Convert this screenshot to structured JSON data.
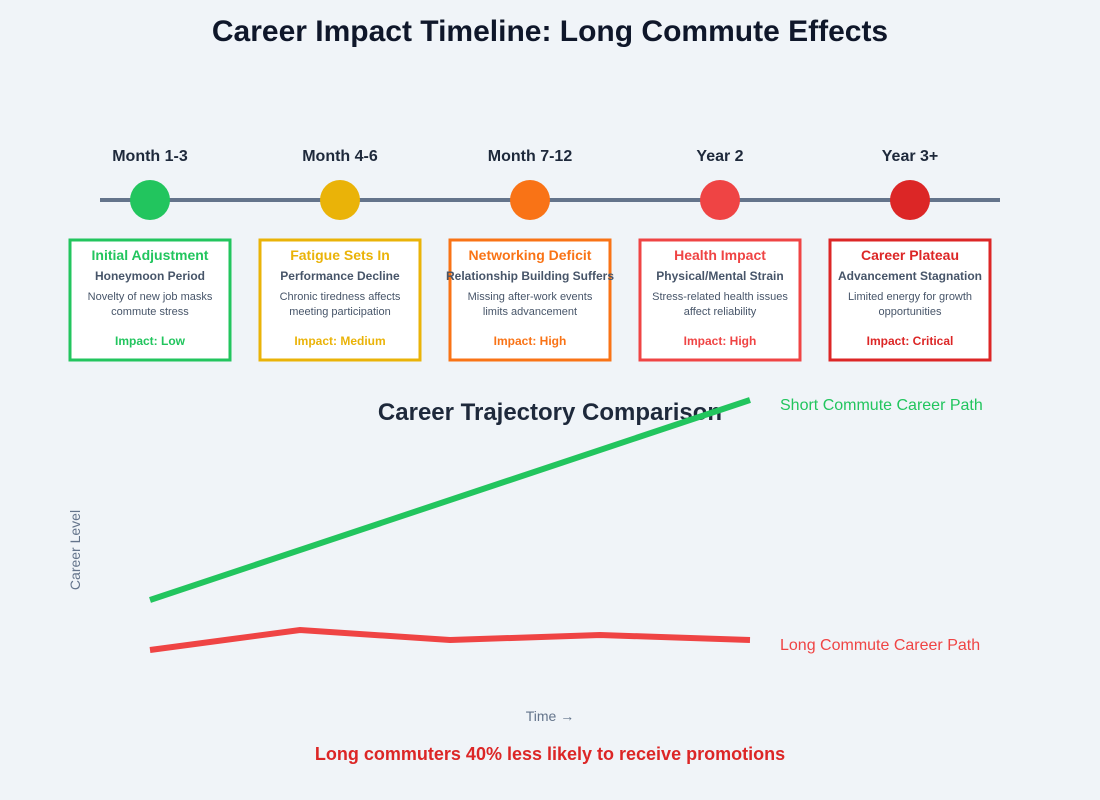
{
  "title": "Career Impact Timeline: Long Commute Effects",
  "stages": [
    {
      "period": "Month 1-3",
      "title": "Initial Adjustment",
      "subtitle": "Honeymoon Period",
      "desc1": "Novelty of new job masks",
      "desc2": "commute stress",
      "impact": "Impact: Low",
      "color": "#22c55e"
    },
    {
      "period": "Month 4-6",
      "title": "Fatigue Sets In",
      "subtitle": "Performance Decline",
      "desc1": "Chronic tiredness affects",
      "desc2": "meeting participation",
      "impact": "Impact: Medium",
      "color": "#eab308"
    },
    {
      "period": "Month 7-12",
      "title": "Networking Deficit",
      "subtitle": "Relationship Building Suffers",
      "desc1": "Missing after-work events",
      "desc2": "limits advancement",
      "impact": "Impact: High",
      "color": "#f97316"
    },
    {
      "period": "Year 2",
      "title": "Health Impact",
      "subtitle": "Physical/Mental Strain",
      "desc1": "Stress-related health issues",
      "desc2": "affect reliability",
      "impact": "Impact: High",
      "color": "#ef4444"
    },
    {
      "period": "Year 3+",
      "title": "Career Plateau",
      "subtitle": "Advancement Stagnation",
      "desc1": "Limited energy for growth",
      "desc2": "opportunities",
      "impact": "Impact: Critical",
      "color": "#dc2626"
    }
  ],
  "comparison": {
    "title": "Career Trajectory Comparison",
    "ylabel": "Career Level",
    "xlabel": "Time →",
    "short": {
      "label": "Short Commute Career Path",
      "color": "#22c55e",
      "trend": "steadily rising"
    },
    "long": {
      "label": "Long Commute Career Path",
      "color": "#ef4444",
      "trend": "flat"
    }
  },
  "footer": "Long commuters 40% less likely to receive promotions"
}
